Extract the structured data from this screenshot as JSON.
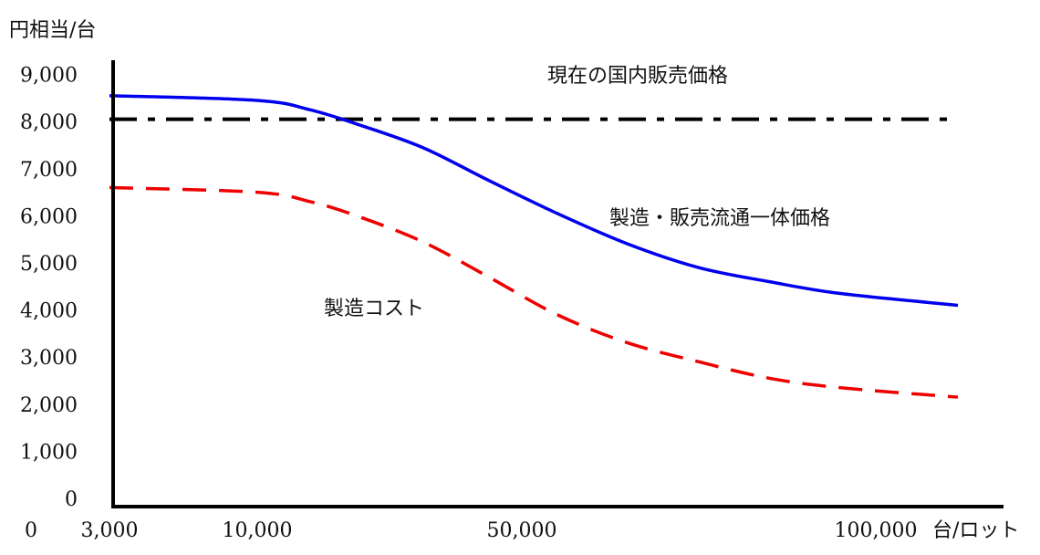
{
  "chart_data": {
    "type": "line",
    "y_unit_label": "円相当/台",
    "x_unit_label": "台/ロット",
    "ylim": [
      0,
      9000
    ],
    "y_ticks": [
      "0",
      "1,000",
      "2,000",
      "3,000",
      "4,000",
      "5,000",
      "6,000",
      "7,000",
      "8,000",
      "9,000"
    ],
    "x_ticks": [
      "0",
      "3,000",
      "10,000",
      "50,000",
      "100,000"
    ],
    "grid": false,
    "series": [
      {
        "name": "現在の国内販売価格",
        "style": "dash-dot",
        "color": "#000000",
        "points": [
          [
            3000,
            8050
          ],
          [
            110000,
            8050
          ]
        ]
      },
      {
        "name": "製造・販売流通一体価格",
        "style": "solid",
        "color": "#0000ee",
        "points": [
          [
            3000,
            8550
          ],
          [
            10000,
            8450
          ],
          [
            18000,
            8250
          ],
          [
            25000,
            7950
          ],
          [
            35000,
            7450
          ],
          [
            45000,
            6750
          ],
          [
            55000,
            6050
          ],
          [
            65000,
            5400
          ],
          [
            75000,
            4900
          ],
          [
            85000,
            4600
          ],
          [
            95000,
            4350
          ],
          [
            110000,
            4100
          ]
        ]
      },
      {
        "name": "製造コスト",
        "style": "dashed",
        "color": "#ee0000",
        "points": [
          [
            3000,
            6600
          ],
          [
            10000,
            6500
          ],
          [
            18000,
            6300
          ],
          [
            25000,
            6000
          ],
          [
            35000,
            5450
          ],
          [
            45000,
            4700
          ],
          [
            55000,
            3900
          ],
          [
            65000,
            3300
          ],
          [
            75000,
            2900
          ],
          [
            85000,
            2550
          ],
          [
            95000,
            2350
          ],
          [
            110000,
            2150
          ]
        ]
      }
    ]
  }
}
